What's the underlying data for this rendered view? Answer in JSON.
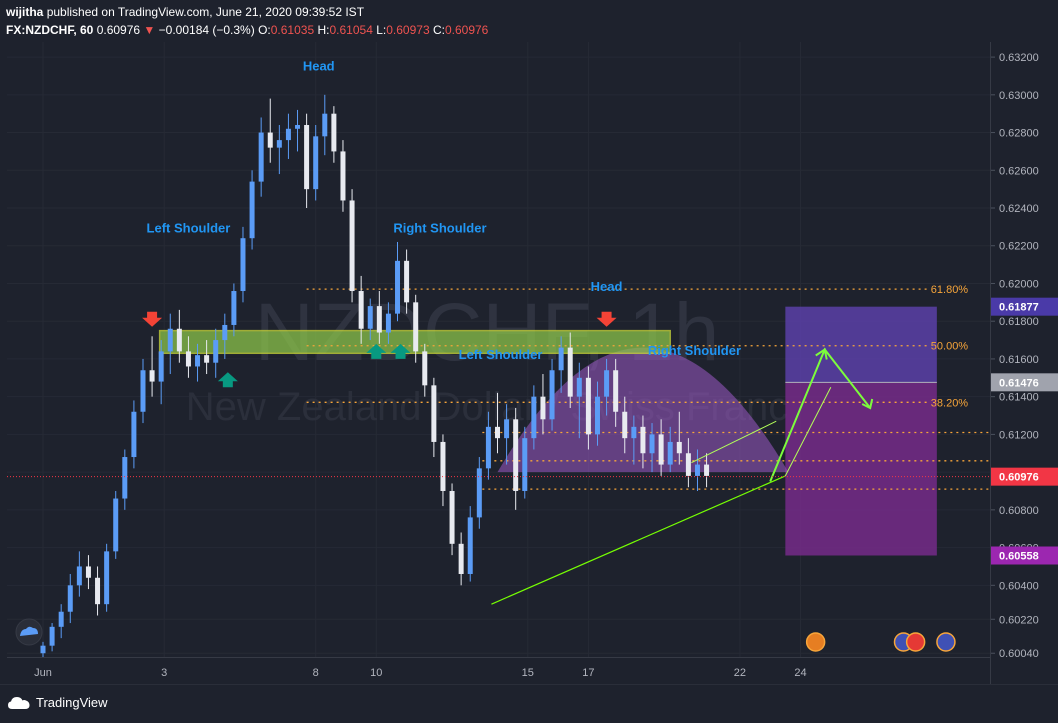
{
  "header": {
    "author": "wijitha",
    "published": "published on TradingView.com, June 21, 2020 09:39:52 IST",
    "symbol": "FX:NZDCHF, 60",
    "last": "0.60976",
    "arrow": "▼",
    "change": "−0.00184 (−0.3%)",
    "o_label": "O:",
    "o_value": "0.61035",
    "h_label": "H:",
    "h_value": "0.61054",
    "l_label": "L:",
    "l_value": "0.60973",
    "c_label": "C:",
    "c_value": "0.60976"
  },
  "footer": {
    "brand": "TradingView"
  },
  "colors": {
    "background": "#1e222d",
    "up": "#2962ff",
    "down": "#ffffff",
    "fib": "#f7a53a",
    "zone": "#8bc34a",
    "arc": "#9c5ac7",
    "target": "#5b3fa8",
    "stop": "#7b2c8f",
    "label": "#2196f3",
    "trend": "#76ff03"
  },
  "chart_data": {
    "type": "candlestick",
    "watermark": "NZDCHF, 1h",
    "watermark_sub": "New Zealand Dollar / Swiss Franc",
    "x_ticks": [
      {
        "label": "Jun",
        "t": 0
      },
      {
        "label": "3",
        "t": 4
      },
      {
        "label": "8",
        "t": 9
      },
      {
        "label": "10",
        "t": 11
      },
      {
        "label": "15",
        "t": 16
      },
      {
        "label": "17",
        "t": 18
      },
      {
        "label": "22",
        "t": 23
      },
      {
        "label": "24",
        "t": 25
      }
    ],
    "y_ticks": [
      "0.63200",
      "0.63000",
      "0.62800",
      "0.62600",
      "0.62400",
      "0.62200",
      "0.62000",
      "0.61800",
      "0.61600",
      "0.61400",
      "0.61200",
      "0.61000",
      "0.60800",
      "0.60600",
      "0.60400",
      "0.60220",
      "0.60040"
    ],
    "y_tick_values": [
      0.632,
      0.63,
      0.628,
      0.626,
      0.624,
      0.622,
      0.62,
      0.618,
      0.616,
      0.614,
      0.612,
      0.61,
      0.608,
      0.606,
      0.604,
      0.6022,
      0.6004
    ],
    "ylim": [
      0.6002,
      0.6328
    ],
    "price_labels": [
      {
        "text": "0.61877",
        "value": 0.61877,
        "color": "#4a3aa8"
      },
      {
        "text": "0.61476",
        "value": 0.61476,
        "color": "#a0a3ad"
      },
      {
        "text": "0.60976",
        "value": 0.60976,
        "color": "#f23645"
      },
      {
        "text": "0.60558",
        "value": 0.60558,
        "color": "#9c27b0"
      }
    ],
    "fib_levels": [
      {
        "label": "61.80%",
        "value": 0.6197
      },
      {
        "label": "50.00%",
        "value": 0.6167
      },
      {
        "label": "38.20%",
        "value": 0.6137
      },
      {
        "label": "",
        "value": 0.6121
      },
      {
        "label": "",
        "value": 0.6106
      },
      {
        "label": "",
        "value": 0.6091
      }
    ],
    "pattern_labels": [
      {
        "text": "Head",
        "t": 9.1,
        "y": 0.6313
      },
      {
        "text": "Left Shoulder",
        "t": 4.8,
        "y": 0.6227
      },
      {
        "text": "Right Shoulder",
        "t": 13.1,
        "y": 0.6227
      },
      {
        "text": "Head",
        "t": 18.6,
        "y": 0.6196
      },
      {
        "text": "Left Shoulder",
        "t": 15.1,
        "y": 0.616
      },
      {
        "text": "Right Shoulder",
        "t": 21.5,
        "y": 0.6162
      }
    ],
    "candles": [
      [
        0.0,
        0.6004,
        0.601,
        0.6001,
        0.6008
      ],
      [
        0.3,
        0.6008,
        0.602,
        0.6005,
        0.6018
      ],
      [
        0.6,
        0.6018,
        0.603,
        0.6012,
        0.6026
      ],
      [
        0.9,
        0.6026,
        0.6046,
        0.602,
        0.604
      ],
      [
        1.2,
        0.604,
        0.6058,
        0.6034,
        0.605
      ],
      [
        1.5,
        0.605,
        0.6056,
        0.6038,
        0.6044
      ],
      [
        1.8,
        0.6044,
        0.605,
        0.6024,
        0.603
      ],
      [
        2.1,
        0.603,
        0.6062,
        0.6026,
        0.6058
      ],
      [
        2.4,
        0.6058,
        0.609,
        0.6054,
        0.6086
      ],
      [
        2.7,
        0.6086,
        0.6112,
        0.608,
        0.6108
      ],
      [
        3.0,
        0.6108,
        0.6138,
        0.6102,
        0.6132
      ],
      [
        3.3,
        0.6132,
        0.616,
        0.6126,
        0.6154
      ],
      [
        3.6,
        0.6154,
        0.6172,
        0.614,
        0.6148
      ],
      [
        3.9,
        0.6148,
        0.617,
        0.6136,
        0.6164
      ],
      [
        4.2,
        0.6164,
        0.6184,
        0.6152,
        0.6176
      ],
      [
        4.5,
        0.6176,
        0.6186,
        0.6158,
        0.6164
      ],
      [
        4.8,
        0.6164,
        0.6172,
        0.615,
        0.6156
      ],
      [
        5.1,
        0.6156,
        0.6168,
        0.6148,
        0.6162
      ],
      [
        5.4,
        0.6162,
        0.617,
        0.6152,
        0.6158
      ],
      [
        5.7,
        0.6158,
        0.6176,
        0.615,
        0.617
      ],
      [
        6.0,
        0.617,
        0.6184,
        0.616,
        0.6178
      ],
      [
        6.3,
        0.6178,
        0.62,
        0.6172,
        0.6196
      ],
      [
        6.6,
        0.6196,
        0.623,
        0.619,
        0.6224
      ],
      [
        6.9,
        0.6224,
        0.626,
        0.6218,
        0.6254
      ],
      [
        7.2,
        0.6254,
        0.6288,
        0.6246,
        0.628
      ],
      [
        7.5,
        0.628,
        0.6298,
        0.6264,
        0.6272
      ],
      [
        7.8,
        0.6272,
        0.6284,
        0.6258,
        0.6276
      ],
      [
        8.1,
        0.6276,
        0.629,
        0.6266,
        0.6282
      ],
      [
        8.4,
        0.6282,
        0.6292,
        0.627,
        0.6284
      ],
      [
        8.7,
        0.6284,
        0.629,
        0.624,
        0.625
      ],
      [
        9.0,
        0.625,
        0.6284,
        0.6244,
        0.6278
      ],
      [
        9.3,
        0.6278,
        0.63,
        0.6268,
        0.629
      ],
      [
        9.6,
        0.629,
        0.6294,
        0.6264,
        0.627
      ],
      [
        9.9,
        0.627,
        0.6276,
        0.6238,
        0.6244
      ],
      [
        10.2,
        0.6244,
        0.625,
        0.619,
        0.6196
      ],
      [
        10.5,
        0.6196,
        0.6204,
        0.6168,
        0.6176
      ],
      [
        10.8,
        0.6176,
        0.6192,
        0.617,
        0.6188
      ],
      [
        11.1,
        0.6188,
        0.6196,
        0.6168,
        0.6174
      ],
      [
        11.4,
        0.6174,
        0.619,
        0.6168,
        0.6184
      ],
      [
        11.7,
        0.6184,
        0.6222,
        0.618,
        0.6212
      ],
      [
        12.0,
        0.6212,
        0.6218,
        0.6184,
        0.619
      ],
      [
        12.3,
        0.619,
        0.6194,
        0.6158,
        0.6164
      ],
      [
        12.6,
        0.6164,
        0.6168,
        0.614,
        0.6146
      ],
      [
        12.9,
        0.6146,
        0.615,
        0.6108,
        0.6116
      ],
      [
        13.2,
        0.6116,
        0.612,
        0.6082,
        0.609
      ],
      [
        13.5,
        0.609,
        0.6094,
        0.6056,
        0.6062
      ],
      [
        13.8,
        0.6062,
        0.6068,
        0.604,
        0.6046
      ],
      [
        14.1,
        0.6046,
        0.6082,
        0.6042,
        0.6076
      ],
      [
        14.4,
        0.6076,
        0.6108,
        0.607,
        0.6102
      ],
      [
        14.7,
        0.6102,
        0.6132,
        0.6096,
        0.6124
      ],
      [
        15.0,
        0.6124,
        0.6142,
        0.611,
        0.6118
      ],
      [
        15.3,
        0.6118,
        0.6136,
        0.6104,
        0.6128
      ],
      [
        15.6,
        0.6128,
        0.6134,
        0.608,
        0.609
      ],
      [
        15.9,
        0.609,
        0.6124,
        0.6086,
        0.6118
      ],
      [
        16.2,
        0.6118,
        0.6146,
        0.6112,
        0.614
      ],
      [
        16.5,
        0.614,
        0.6152,
        0.612,
        0.6128
      ],
      [
        16.8,
        0.6128,
        0.616,
        0.6122,
        0.6154
      ],
      [
        17.1,
        0.6154,
        0.6172,
        0.6142,
        0.6166
      ],
      [
        17.4,
        0.6166,
        0.6174,
        0.6134,
        0.614
      ],
      [
        17.7,
        0.614,
        0.6158,
        0.6118,
        0.615
      ],
      [
        18.0,
        0.615,
        0.6156,
        0.6112,
        0.612
      ],
      [
        18.3,
        0.612,
        0.6148,
        0.6114,
        0.614
      ],
      [
        18.6,
        0.614,
        0.616,
        0.613,
        0.6154
      ],
      [
        18.9,
        0.6154,
        0.616,
        0.6124,
        0.6132
      ],
      [
        19.2,
        0.6132,
        0.614,
        0.611,
        0.6118
      ],
      [
        19.5,
        0.6118,
        0.613,
        0.6104,
        0.6124
      ],
      [
        19.8,
        0.6124,
        0.613,
        0.6102,
        0.611
      ],
      [
        20.1,
        0.611,
        0.6126,
        0.61,
        0.612
      ],
      [
        20.4,
        0.612,
        0.6128,
        0.6098,
        0.6104
      ],
      [
        20.7,
        0.6104,
        0.6124,
        0.61,
        0.6116
      ],
      [
        21.0,
        0.6116,
        0.6132,
        0.6104,
        0.611
      ],
      [
        21.3,
        0.611,
        0.6118,
        0.6092,
        0.6098
      ],
      [
        21.6,
        0.6098,
        0.6112,
        0.609,
        0.6104
      ],
      [
        21.9,
        0.6104,
        0.611,
        0.6092,
        0.6098
      ]
    ]
  }
}
